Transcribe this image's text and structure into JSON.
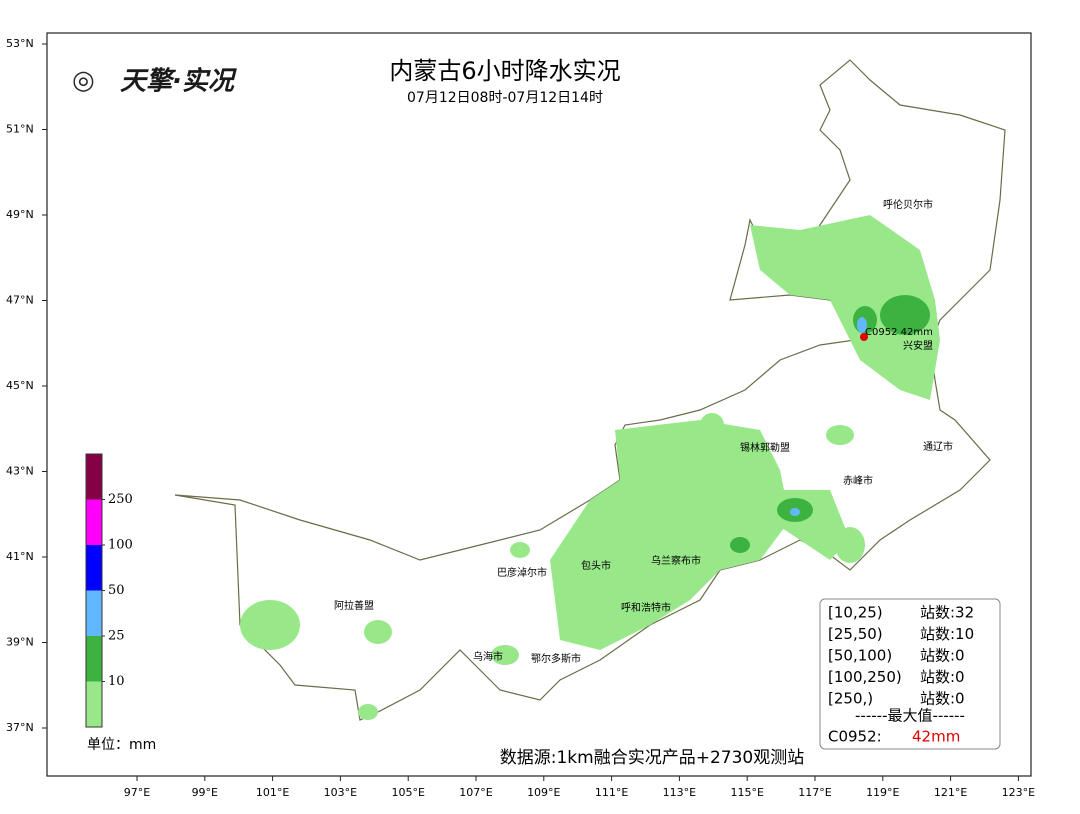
{
  "header": {
    "logo": "天擎·实况",
    "title": "内蒙古6小时降水实况",
    "subtitle": "07月12日08时-07月12日14时"
  },
  "axes": {
    "lat_ticks": [
      "53°N",
      "51°N",
      "49°N",
      "47°N",
      "45°N",
      "43°N",
      "41°N",
      "39°N",
      "37°N"
    ],
    "lon_ticks": [
      "97°E",
      "99°E",
      "101°E",
      "103°E",
      "105°E",
      "107°E",
      "109°E",
      "111°E",
      "113°E",
      "115°E",
      "117°E",
      "119°E",
      "121°E",
      "123°E"
    ]
  },
  "cities": [
    "呼伦贝尔市",
    "兴安盟",
    "锡林郭勒盟",
    "通辽市",
    "赤峰市",
    "乌兰察布市",
    "包头市",
    "巴彦淖尔市",
    "呼和浩特市",
    "阿拉善盟",
    "乌海市",
    "鄂尔多斯市"
  ],
  "station": {
    "label": "C0952 42mm"
  },
  "colorbar": {
    "levels": [
      "10",
      "25",
      "50",
      "100",
      "250"
    ],
    "colors": [
      "#98e88a",
      "#3cb341",
      "#62b8ff",
      "#0000fe",
      "#fc00fc",
      "#850045"
    ],
    "unit": "单位：mm"
  },
  "stats": {
    "rows": [
      {
        "range": "[10,25)",
        "count": "站数:32"
      },
      {
        "range": "[25,50)",
        "count": "站数:10"
      },
      {
        "range": "[50,100)",
        "count": "站数:0"
      },
      {
        "range": "[100,250)",
        "count": "站数:0"
      },
      {
        "range": "[250,)",
        "count": "站数:0"
      }
    ],
    "max_heading": "------最大值------",
    "max_station": "C0952:",
    "max_value": "42mm"
  },
  "source": "数据源:1km融合实况产品+2730观测站"
}
